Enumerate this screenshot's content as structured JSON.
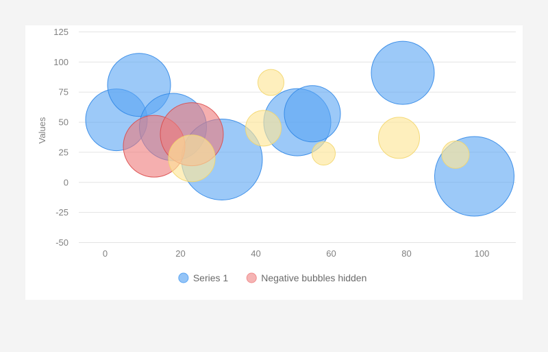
{
  "chart_data": {
    "type": "bubble",
    "title": "",
    "xlabel": "",
    "ylabel": "Values",
    "xlim": [
      -7,
      109
    ],
    "ylim": [
      -50,
      125
    ],
    "x_ticks": [
      0,
      20,
      40,
      60,
      80,
      100
    ],
    "y_ticks": [
      -50,
      -25,
      0,
      25,
      50,
      75,
      100,
      125
    ],
    "grid": "horizontal",
    "legend_position": "bottom",
    "legend": [
      {
        "name": "Series 1",
        "color": "#5aa5f3"
      },
      {
        "name": "Negative bubbles hidden",
        "color": "#f08c8c"
      }
    ],
    "series": [
      {
        "name": "Series 1",
        "color": "#5aa5f3",
        "stroke": "#2f86e6",
        "points": [
          {
            "x": 3,
            "y": 52,
            "r": 45
          },
          {
            "x": 9,
            "y": 81,
            "r": 46
          },
          {
            "x": 18,
            "y": 46,
            "r": 49
          },
          {
            "x": 31,
            "y": 19,
            "r": 59
          },
          {
            "x": 51,
            "y": 50,
            "r": 49
          },
          {
            "x": 55,
            "y": 57,
            "r": 41
          },
          {
            "x": 79,
            "y": 91,
            "r": 46
          },
          {
            "x": 98,
            "y": 5,
            "r": 58
          }
        ]
      },
      {
        "name": "Negative bubbles hidden",
        "color": "#ee7a7a",
        "stroke": "#d94a4a",
        "points": [
          {
            "x": 13,
            "y": 30,
            "r": 45
          },
          {
            "x": 23,
            "y": 40,
            "r": 46
          }
        ]
      },
      {
        "name": "",
        "color": "#fde79a",
        "stroke": "#f3d66c",
        "points": [
          {
            "x": 23,
            "y": 20,
            "r": 34
          },
          {
            "x": 42,
            "y": 45,
            "r": 26
          },
          {
            "x": 44,
            "y": 83,
            "r": 19
          },
          {
            "x": 58,
            "y": 24,
            "r": 17
          },
          {
            "x": 78,
            "y": 37,
            "r": 30
          },
          {
            "x": 93,
            "y": 23,
            "r": 20
          }
        ]
      }
    ]
  }
}
